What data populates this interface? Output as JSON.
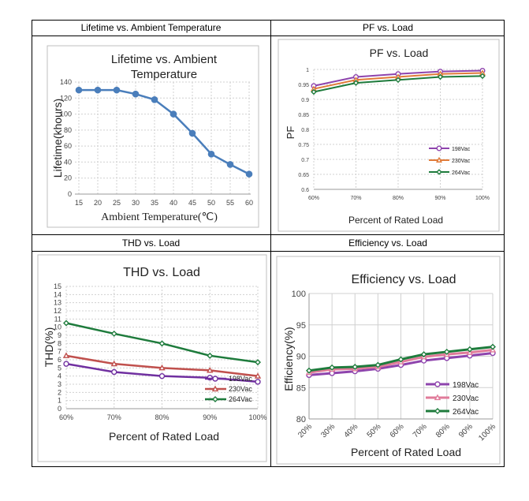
{
  "headers": {
    "lifetime": "Lifetime vs. Ambient Temperature",
    "pf": "PF vs. Load",
    "thd": "THD vs. Load",
    "eff": "Efficiency vs. Load"
  },
  "chart_data": [
    {
      "id": "lifetime",
      "type": "line",
      "title": "Lifetime vs. Ambient Temperature",
      "title_lines": [
        "Lifetime vs. Ambient",
        "Temperature"
      ],
      "xlabel": "Ambient Temperature(℃)",
      "ylabel": "Lifetime(khours)",
      "x": [
        15,
        20,
        25,
        30,
        35,
        40,
        45,
        50,
        55,
        60
      ],
      "x_ticks": [
        "15",
        "20",
        "25",
        "30",
        "35",
        "40",
        "45",
        "50",
        "55",
        "60"
      ],
      "y_ticks": [
        "0",
        "20",
        "40",
        "60",
        "80",
        "100",
        "120",
        "140"
      ],
      "ylim": [
        0,
        140
      ],
      "grid": true,
      "series": [
        {
          "name": "Lifetime",
          "color": "#4a7ebb",
          "values": [
            130,
            130,
            130,
            125,
            118,
            100,
            76,
            50,
            37,
            25
          ]
        }
      ]
    },
    {
      "id": "pf",
      "type": "line",
      "title": "PF vs. Load",
      "xlabel": "Percent of Rated Load",
      "ylabel": "PF",
      "categories": [
        "60%",
        "70%",
        "80%",
        "90%",
        "100%"
      ],
      "y_ticks": [
        "0.6",
        "0.65",
        "0.7",
        "0.75",
        "0.8",
        "0.85",
        "0.9",
        "0.95",
        "1"
      ],
      "ylim": [
        0.6,
        1.0
      ],
      "legend": "bottom-right",
      "series": [
        {
          "name": "198Vac",
          "color": "#8e44ad",
          "values": [
            0.945,
            0.975,
            0.985,
            0.993,
            0.996
          ]
        },
        {
          "name": "230Vac",
          "color": "#e07b39",
          "values": [
            0.935,
            0.965,
            0.975,
            0.985,
            0.988
          ]
        },
        {
          "name": "264Vac",
          "color": "#1e7b3c",
          "values": [
            0.925,
            0.955,
            0.965,
            0.975,
            0.978
          ]
        }
      ]
    },
    {
      "id": "thd",
      "type": "line",
      "title": "THD vs. Load",
      "xlabel": "Percent of Rated Load",
      "ylabel": "THD(%)",
      "categories": [
        "60%",
        "70%",
        "80%",
        "90%",
        "100%"
      ],
      "y_ticks": [
        "0",
        "1",
        "2",
        "3",
        "4",
        "5",
        "6",
        "7",
        "8",
        "9",
        "10",
        "11",
        "12",
        "13",
        "14",
        "15"
      ],
      "ylim": [
        0,
        15
      ],
      "legend": "bottom-right",
      "series": [
        {
          "name": "198Vac",
          "color": "#7030a0",
          "values": [
            5.5,
            4.5,
            4.0,
            3.8,
            3.3
          ]
        },
        {
          "name": "230Vac",
          "color": "#c0504d",
          "values": [
            6.5,
            5.5,
            5.0,
            4.7,
            4.0
          ]
        },
        {
          "name": "264Vac",
          "color": "#1e7b3c",
          "values": [
            10.5,
            9.2,
            8.0,
            6.5,
            5.7
          ]
        }
      ]
    },
    {
      "id": "eff",
      "type": "line",
      "title": "Efficiency vs. Load",
      "xlabel": "Percent of Rated Load",
      "ylabel": "Efficiency(%)",
      "categories": [
        "20%",
        "30%",
        "40%",
        "50%",
        "60%",
        "70%",
        "80%",
        "90%",
        "100%"
      ],
      "y_ticks": [
        "80",
        "85",
        "90",
        "95",
        "100"
      ],
      "ylim": [
        80,
        100
      ],
      "legend": "bottom-right",
      "series": [
        {
          "name": "198Vac",
          "color": "#8e44ad",
          "values": [
            87.0,
            87.3,
            87.6,
            88.0,
            88.6,
            89.3,
            89.7,
            90.1,
            90.5
          ]
        },
        {
          "name": "230Vac",
          "color": "#e07b9a",
          "values": [
            87.4,
            87.9,
            88.0,
            88.3,
            89.1,
            89.9,
            90.3,
            90.6,
            91.0
          ]
        },
        {
          "name": "264Vac",
          "color": "#1e7b3c",
          "values": [
            87.7,
            88.2,
            88.3,
            88.6,
            89.5,
            90.3,
            90.7,
            91.1,
            91.5
          ]
        }
      ]
    }
  ]
}
